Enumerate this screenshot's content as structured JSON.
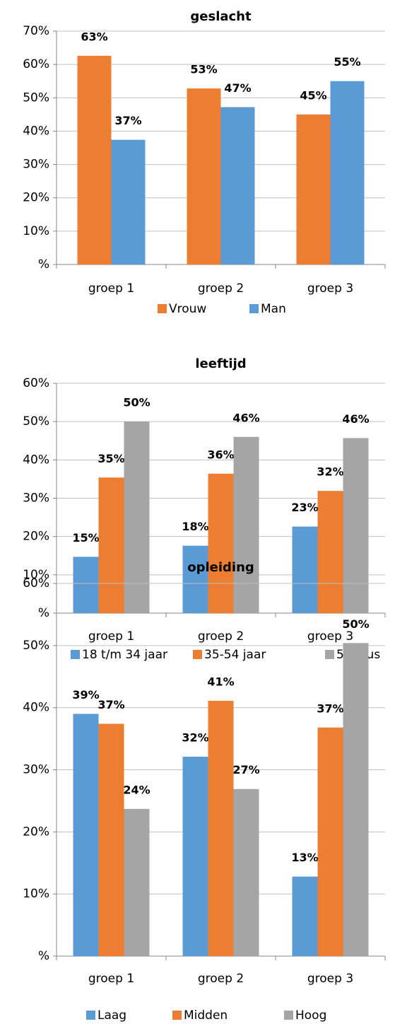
{
  "chart_data": [
    {
      "type": "bar",
      "title": "geslacht",
      "categories": [
        "groep 1",
        "groep 2",
        "groep 3"
      ],
      "series": [
        {
          "name": "Vrouw",
          "color": "#ed7d31",
          "values": [
            62.6,
            52.8,
            45
          ],
          "value_labels": [
            "63%",
            "53%",
            "45%"
          ]
        },
        {
          "name": "Man",
          "color": "#5b9bd5",
          "values": [
            37.4,
            47.2,
            55
          ],
          "value_labels": [
            "37%",
            "47%",
            "55%"
          ]
        }
      ],
      "ylim": [
        0,
        70
      ],
      "yticks": [
        {
          "value": 0,
          "label": "%"
        },
        {
          "value": 10,
          "label": "10%"
        },
        {
          "value": 20,
          "label": "20%"
        },
        {
          "value": 30,
          "label": "30%"
        },
        {
          "value": 40,
          "label": "40%"
        },
        {
          "value": 50,
          "label": "50%"
        },
        {
          "value": 60,
          "label": "60%"
        },
        {
          "value": 70,
          "label": "70%"
        }
      ],
      "grid": true,
      "legend": "bottom"
    },
    {
      "type": "bar",
      "title": "leeftijd",
      "categories": [
        "groep 1",
        "groep 2",
        "groep 3"
      ],
      "series": [
        {
          "name": "18 t/m 34 jaar",
          "color": "#5b9bd5",
          "values": [
            14.7,
            17.6,
            22.6
          ],
          "value_labels": [
            "15%",
            "18%",
            "23%"
          ]
        },
        {
          "name": "35-54 jaar",
          "color": "#ed7d31",
          "values": [
            35.4,
            36.4,
            31.9
          ],
          "value_labels": [
            "35%",
            "36%",
            "32%"
          ]
        },
        {
          "name": "55 plus",
          "color": "#a5a5a5",
          "values": [
            50.0,
            46.0,
            45.7
          ],
          "value_labels": [
            "50%",
            "46%",
            "46%"
          ]
        }
      ],
      "ylim": [
        0,
        60
      ],
      "yticks": [
        {
          "value": 0,
          "label": "%"
        },
        {
          "value": 10,
          "label": "10%"
        },
        {
          "value": 20,
          "label": "20%"
        },
        {
          "value": 30,
          "label": "30%"
        },
        {
          "value": 40,
          "label": "40%"
        },
        {
          "value": 50,
          "label": "50%"
        },
        {
          "value": 60,
          "label": "60%"
        }
      ],
      "grid": true,
      "legend": "bottom"
    },
    {
      "type": "bar",
      "title": "opleiding",
      "categories": [
        "groep 1",
        "groep 2",
        "groep 3"
      ],
      "series": [
        {
          "name": "Laag",
          "color": "#5b9bd5",
          "values": [
            39.0,
            32.1,
            12.8
          ],
          "value_labels": [
            "39%",
            "32%",
            "13%"
          ]
        },
        {
          "name": "Midden",
          "color": "#ed7d31",
          "values": [
            37.4,
            41.1,
            36.8
          ],
          "value_labels": [
            "37%",
            "41%",
            "37%"
          ]
        },
        {
          "name": "Hoog",
          "color": "#a5a5a5",
          "values": [
            23.7,
            26.9,
            50.4
          ],
          "value_labels": [
            "24%",
            "27%",
            "50%"
          ]
        }
      ],
      "ylim": [
        0,
        60
      ],
      "yticks": [
        {
          "value": 0,
          "label": "%"
        },
        {
          "value": 10,
          "label": "10%"
        },
        {
          "value": 20,
          "label": "20%"
        },
        {
          "value": 30,
          "label": "30%"
        },
        {
          "value": 40,
          "label": "40%"
        },
        {
          "value": 50,
          "label": "50%"
        },
        {
          "value": 60,
          "label": "60%"
        }
      ],
      "grid": true,
      "legend": "bottom"
    }
  ]
}
